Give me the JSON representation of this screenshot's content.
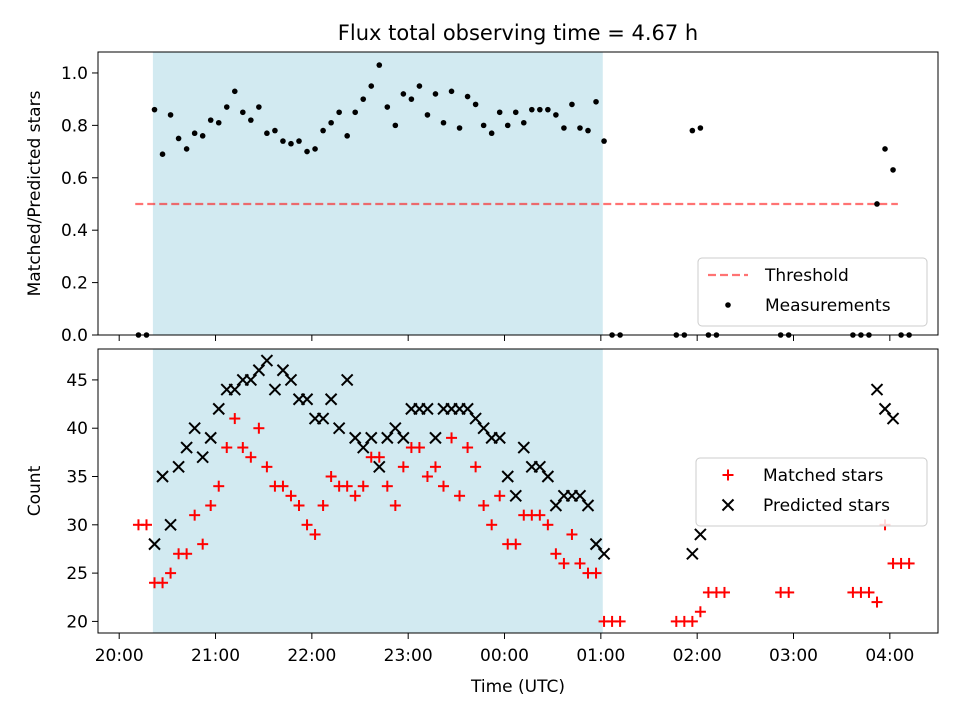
{
  "title": "Flux total observing time = 4.67 h",
  "xlabel": "Time (UTC)",
  "x_tick_labels": [
    "20:00",
    "21:00",
    "22:00",
    "23:00",
    "00:00",
    "01:00",
    "02:00",
    "03:00",
    "04:00"
  ],
  "x_tick_hours": [
    0,
    1,
    2,
    3,
    4,
    5,
    6,
    7,
    8
  ],
  "x_range_hours": [
    -0.22,
    8.5
  ],
  "x_axis_origin": "20:00",
  "shaded_span_hours": [
    0.35,
    5.02
  ],
  "colors": {
    "shade": "#add8e6",
    "threshold": "#ff0000",
    "measurements": "#000000",
    "matched": "#ff0000",
    "predicted": "#000000"
  },
  "chart_data": [
    {
      "type": "scatter",
      "ylabel": "Matched/Predicted stars",
      "ylim": [
        0,
        1.08
      ],
      "y_ticks": [
        0.0,
        0.2,
        0.4,
        0.6,
        0.8,
        1.0
      ],
      "y_tick_labels": [
        "0.0",
        "0.2",
        "0.4",
        "0.6",
        "0.8",
        "1.0"
      ],
      "legend_position": "lower right",
      "threshold": {
        "name": "Threshold",
        "y": 0.5,
        "x_range": [
          "20:10",
          "04:05"
        ]
      },
      "series": [
        {
          "name": "Measurements",
          "points": [
            [
              "20:12",
              0.0
            ],
            [
              "20:17",
              0.0
            ],
            [
              "20:22",
              0.86
            ],
            [
              "20:27",
              0.69
            ],
            [
              "20:32",
              0.84
            ],
            [
              "20:37",
              0.75
            ],
            [
              "20:42",
              0.71
            ],
            [
              "20:47",
              0.77
            ],
            [
              "20:52",
              0.76
            ],
            [
              "20:57",
              0.82
            ],
            [
              "21:02",
              0.81
            ],
            [
              "21:07",
              0.87
            ],
            [
              "21:12",
              0.93
            ],
            [
              "21:17",
              0.85
            ],
            [
              "21:22",
              0.82
            ],
            [
              "21:27",
              0.87
            ],
            [
              "21:32",
              0.77
            ],
            [
              "21:37",
              0.78
            ],
            [
              "21:42",
              0.74
            ],
            [
              "21:47",
              0.73
            ],
            [
              "21:52",
              0.74
            ],
            [
              "21:57",
              0.7
            ],
            [
              "22:02",
              0.71
            ],
            [
              "22:07",
              0.78
            ],
            [
              "22:12",
              0.81
            ],
            [
              "22:17",
              0.85
            ],
            [
              "22:22",
              0.76
            ],
            [
              "22:27",
              0.85
            ],
            [
              "22:32",
              0.9
            ],
            [
              "22:37",
              0.95
            ],
            [
              "22:42",
              1.03
            ],
            [
              "22:47",
              0.87
            ],
            [
              "22:52",
              0.8
            ],
            [
              "22:57",
              0.92
            ],
            [
              "23:02",
              0.9
            ],
            [
              "23:07",
              0.95
            ],
            [
              "23:12",
              0.84
            ],
            [
              "23:17",
              0.92
            ],
            [
              "23:22",
              0.81
            ],
            [
              "23:27",
              0.93
            ],
            [
              "23:32",
              0.79
            ],
            [
              "23:37",
              0.91
            ],
            [
              "23:42",
              0.88
            ],
            [
              "23:47",
              0.8
            ],
            [
              "23:52",
              0.77
            ],
            [
              "23:57",
              0.85
            ],
            [
              "00:02",
              0.8
            ],
            [
              "00:07",
              0.85
            ],
            [
              "00:12",
              0.81
            ],
            [
              "00:17",
              0.86
            ],
            [
              "00:22",
              0.86
            ],
            [
              "00:27",
              0.86
            ],
            [
              "00:32",
              0.84
            ],
            [
              "00:37",
              0.79
            ],
            [
              "00:42",
              0.88
            ],
            [
              "00:47",
              0.79
            ],
            [
              "00:52",
              0.78
            ],
            [
              "00:57",
              0.89
            ],
            [
              "01:02",
              0.74
            ],
            [
              "01:07",
              0.0
            ],
            [
              "01:12",
              0.0
            ],
            [
              "01:47",
              0.0
            ],
            [
              "01:52",
              0.0
            ],
            [
              "01:57",
              0.78
            ],
            [
              "02:02",
              0.79
            ],
            [
              "02:07",
              0.0
            ],
            [
              "02:12",
              0.0
            ],
            [
              "02:52",
              0.0
            ],
            [
              "02:57",
              0.0
            ],
            [
              "03:37",
              0.0
            ],
            [
              "03:42",
              0.0
            ],
            [
              "03:47",
              0.0
            ],
            [
              "03:52",
              0.5
            ],
            [
              "03:57",
              0.71
            ],
            [
              "04:02",
              0.63
            ],
            [
              "04:07",
              0.0
            ],
            [
              "04:12",
              0.0
            ]
          ]
        }
      ]
    },
    {
      "type": "scatter",
      "ylabel": "Count",
      "ylim": [
        18.8,
        48.2
      ],
      "y_ticks": [
        20,
        25,
        30,
        35,
        40,
        45
      ],
      "y_tick_labels": [
        "20",
        "25",
        "30",
        "35",
        "40",
        "45"
      ],
      "legend_position": "center right",
      "series": [
        {
          "name": "Matched stars",
          "marker": "+",
          "points": [
            [
              "20:12",
              30
            ],
            [
              "20:17",
              30
            ],
            [
              "20:22",
              24
            ],
            [
              "20:27",
              24
            ],
            [
              "20:32",
              25
            ],
            [
              "20:37",
              27
            ],
            [
              "20:42",
              27
            ],
            [
              "20:47",
              31
            ],
            [
              "20:52",
              28
            ],
            [
              "20:57",
              32
            ],
            [
              "21:02",
              34
            ],
            [
              "21:07",
              38
            ],
            [
              "21:12",
              41
            ],
            [
              "21:17",
              38
            ],
            [
              "21:22",
              37
            ],
            [
              "21:27",
              40
            ],
            [
              "21:32",
              36
            ],
            [
              "21:37",
              34
            ],
            [
              "21:42",
              34
            ],
            [
              "21:47",
              33
            ],
            [
              "21:52",
              32
            ],
            [
              "21:57",
              30
            ],
            [
              "22:02",
              29
            ],
            [
              "22:07",
              32
            ],
            [
              "22:12",
              35
            ],
            [
              "22:17",
              34
            ],
            [
              "22:22",
              34
            ],
            [
              "22:27",
              33
            ],
            [
              "22:32",
              34
            ],
            [
              "22:37",
              37
            ],
            [
              "22:42",
              37
            ],
            [
              "22:47",
              34
            ],
            [
              "22:52",
              32
            ],
            [
              "22:57",
              36
            ],
            [
              "23:02",
              38
            ],
            [
              "23:07",
              38
            ],
            [
              "23:12",
              35
            ],
            [
              "23:17",
              36
            ],
            [
              "23:22",
              34
            ],
            [
              "23:27",
              39
            ],
            [
              "23:32",
              33
            ],
            [
              "23:37",
              38
            ],
            [
              "23:42",
              36
            ],
            [
              "23:47",
              32
            ],
            [
              "23:52",
              30
            ],
            [
              "23:57",
              33
            ],
            [
              "00:02",
              28
            ],
            [
              "00:07",
              28
            ],
            [
              "00:12",
              31
            ],
            [
              "00:17",
              31
            ],
            [
              "00:22",
              31
            ],
            [
              "00:27",
              30
            ],
            [
              "00:32",
              27
            ],
            [
              "00:37",
              26
            ],
            [
              "00:42",
              29
            ],
            [
              "00:47",
              26
            ],
            [
              "00:52",
              25
            ],
            [
              "00:57",
              25
            ],
            [
              "01:02",
              20
            ],
            [
              "01:07",
              20
            ],
            [
              "01:12",
              20
            ],
            [
              "01:47",
              20
            ],
            [
              "01:52",
              20
            ],
            [
              "01:57",
              20
            ],
            [
              "02:02",
              21
            ],
            [
              "02:07",
              23
            ],
            [
              "02:12",
              23
            ],
            [
              "02:17",
              23
            ],
            [
              "02:52",
              23
            ],
            [
              "02:57",
              23
            ],
            [
              "03:37",
              23
            ],
            [
              "03:42",
              23
            ],
            [
              "03:47",
              23
            ],
            [
              "03:52",
              22
            ],
            [
              "03:57",
              30
            ],
            [
              "04:02",
              26
            ],
            [
              "04:07",
              26
            ],
            [
              "04:12",
              26
            ]
          ]
        },
        {
          "name": "Predicted stars",
          "marker": "x",
          "points": [
            [
              "20:22",
              28
            ],
            [
              "20:27",
              35
            ],
            [
              "20:32",
              30
            ],
            [
              "20:37",
              36
            ],
            [
              "20:42",
              38
            ],
            [
              "20:47",
              40
            ],
            [
              "20:52",
              37
            ],
            [
              "20:57",
              39
            ],
            [
              "21:02",
              42
            ],
            [
              "21:07",
              44
            ],
            [
              "21:12",
              44
            ],
            [
              "21:17",
              45
            ],
            [
              "21:22",
              45
            ],
            [
              "21:27",
              46
            ],
            [
              "21:32",
              47
            ],
            [
              "21:37",
              44
            ],
            [
              "21:42",
              46
            ],
            [
              "21:47",
              45
            ],
            [
              "21:52",
              43
            ],
            [
              "21:57",
              43
            ],
            [
              "22:02",
              41
            ],
            [
              "22:07",
              41
            ],
            [
              "22:12",
              43
            ],
            [
              "22:17",
              40
            ],
            [
              "22:22",
              45
            ],
            [
              "22:27",
              39
            ],
            [
              "22:32",
              38
            ],
            [
              "22:37",
              39
            ],
            [
              "22:42",
              36
            ],
            [
              "22:47",
              39
            ],
            [
              "22:52",
              40
            ],
            [
              "22:57",
              39
            ],
            [
              "23:02",
              42
            ],
            [
              "23:07",
              42
            ],
            [
              "23:12",
              42
            ],
            [
              "23:17",
              39
            ],
            [
              "23:22",
              42
            ],
            [
              "23:27",
              42
            ],
            [
              "23:32",
              42
            ],
            [
              "23:37",
              42
            ],
            [
              "23:42",
              41
            ],
            [
              "23:47",
              40
            ],
            [
              "23:52",
              39
            ],
            [
              "23:57",
              39
            ],
            [
              "00:02",
              35
            ],
            [
              "00:07",
              33
            ],
            [
              "00:12",
              38
            ],
            [
              "00:17",
              36
            ],
            [
              "00:22",
              36
            ],
            [
              "00:27",
              35
            ],
            [
              "00:32",
              32
            ],
            [
              "00:37",
              33
            ],
            [
              "00:42",
              33
            ],
            [
              "00:47",
              33
            ],
            [
              "00:52",
              32
            ],
            [
              "00:57",
              28
            ],
            [
              "01:02",
              27
            ],
            [
              "01:57",
              27
            ],
            [
              "02:02",
              29
            ],
            [
              "03:52",
              44
            ],
            [
              "03:57",
              42
            ],
            [
              "04:02",
              41
            ]
          ]
        }
      ]
    }
  ]
}
